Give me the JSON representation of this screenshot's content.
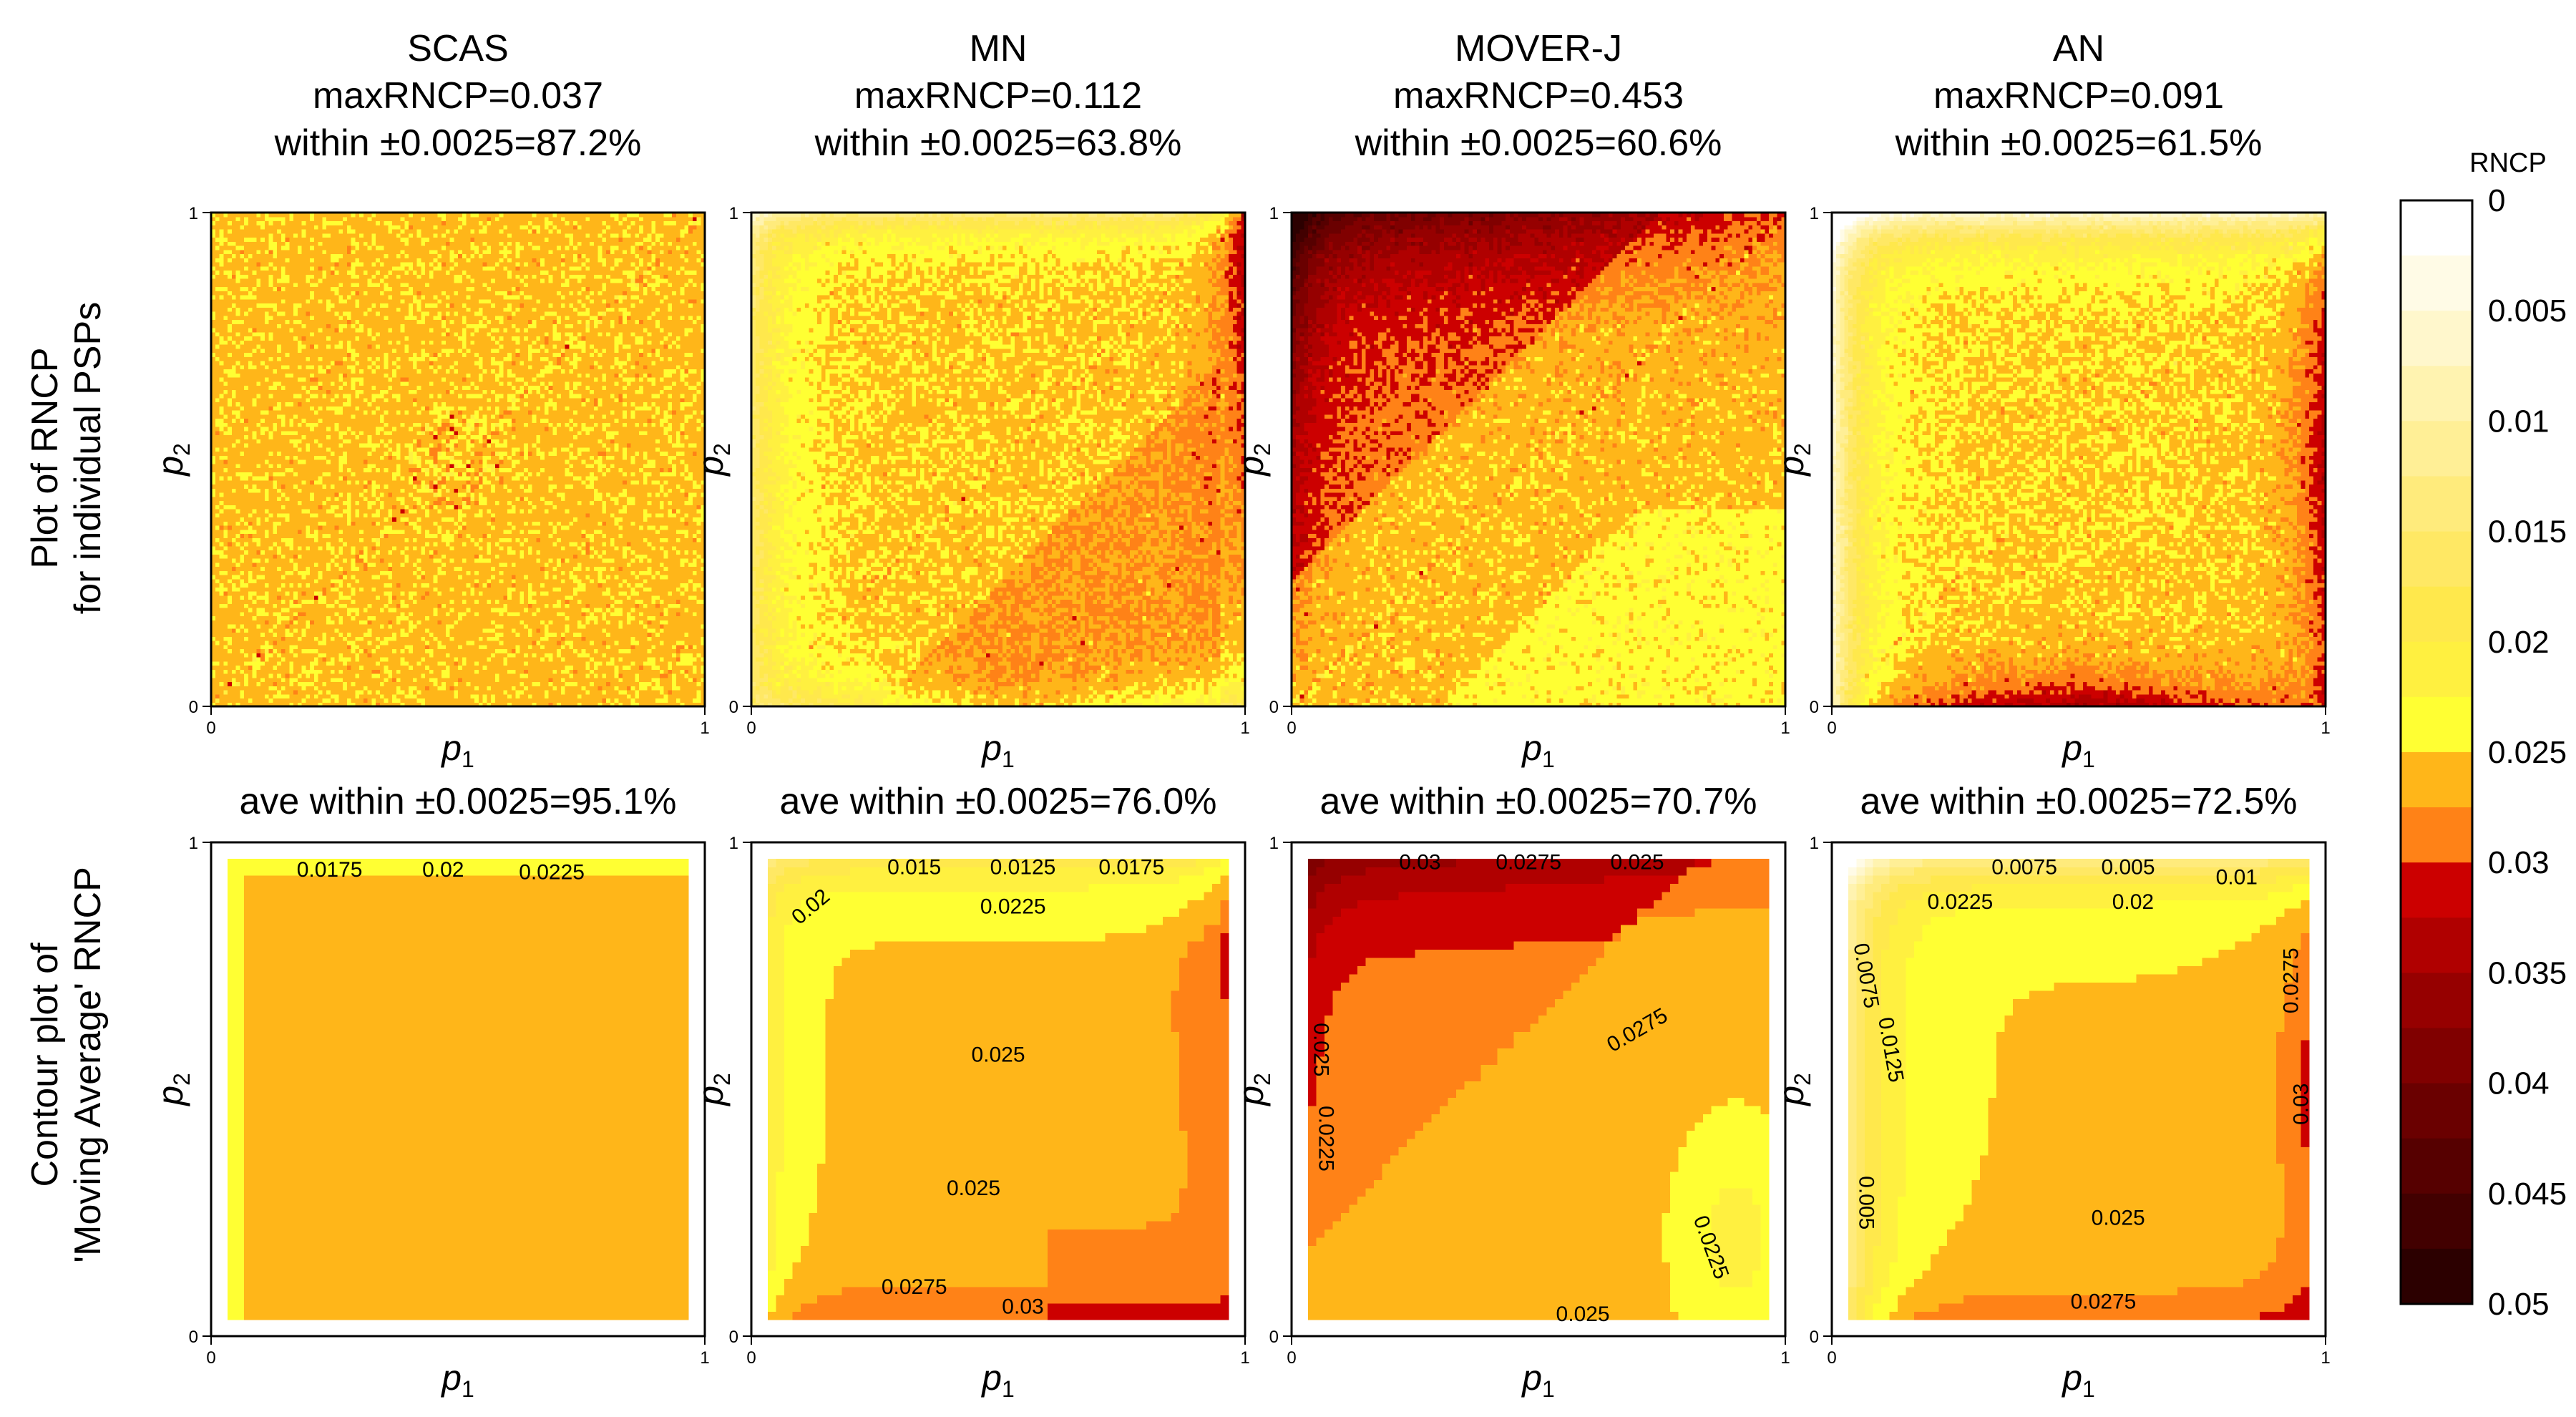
{
  "figure": {
    "row_labels": [
      [
        "Plot of RNCP",
        "for individual PSPs"
      ],
      [
        "Contour plot of",
        "'Moving Average' RNCP"
      ]
    ]
  },
  "chart_data": [
    {
      "type": "heatmap",
      "row": 0,
      "col": 0,
      "title": [
        "SCAS",
        "maxRNCP=0.037",
        "within ±0.0025=87.2%"
      ],
      "xlabel": "p",
      "xlabel_sub": "1",
      "ylabel": "p",
      "ylabel_sub": "2",
      "xlim": [
        0,
        1
      ],
      "ylim": [
        0,
        1
      ],
      "x_ticks": [
        "0",
        "1"
      ],
      "y_ticks": [
        "0",
        "1"
      ],
      "pattern": "uniform"
    },
    {
      "type": "heatmap",
      "row": 0,
      "col": 1,
      "title": [
        "MN",
        "maxRNCP=0.112",
        "within ±0.0025=63.8%"
      ],
      "xlabel": "p",
      "xlabel_sub": "1",
      "ylabel": "p",
      "ylabel_sub": "2",
      "xlim": [
        0,
        1
      ],
      "ylim": [
        0,
        1
      ],
      "x_ticks": [
        "0",
        "1"
      ],
      "y_ticks": [
        "0",
        "1"
      ],
      "pattern": "mn"
    },
    {
      "type": "heatmap",
      "row": 0,
      "col": 2,
      "title": [
        "MOVER-J",
        "maxRNCP=0.453",
        "within ±0.0025=60.6%"
      ],
      "xlabel": "p",
      "xlabel_sub": "1",
      "ylabel": "p",
      "ylabel_sub": "2",
      "xlim": [
        0,
        1
      ],
      "ylim": [
        0,
        1
      ],
      "x_ticks": [
        "0",
        "1"
      ],
      "y_ticks": [
        "0",
        "1"
      ],
      "pattern": "moverj"
    },
    {
      "type": "heatmap",
      "row": 0,
      "col": 3,
      "title": [
        "AN",
        "maxRNCP=0.091",
        "within ±0.0025=61.5%"
      ],
      "xlabel": "p",
      "xlabel_sub": "1",
      "ylabel": "p",
      "ylabel_sub": "2",
      "xlim": [
        0,
        1
      ],
      "ylim": [
        0,
        1
      ],
      "x_ticks": [
        "0",
        "1"
      ],
      "y_ticks": [
        "0",
        "1"
      ],
      "pattern": "an"
    },
    {
      "type": "heatmap",
      "row": 1,
      "col": 0,
      "title": [
        "ave within ±0.0025=95.1%"
      ],
      "xlabel": "p",
      "xlabel_sub": "1",
      "ylabel": "p",
      "ylabel_sub": "2",
      "xlim": [
        0,
        1
      ],
      "ylim": [
        0,
        1
      ],
      "x_ticks": [
        "0",
        "1"
      ],
      "y_ticks": [
        "0",
        "1"
      ],
      "pattern": "c_uniform",
      "contour_labels": [
        {
          "text": "0.0175",
          "x": 0.24,
          "y": 0.945,
          "angle": 0
        },
        {
          "text": "0.02",
          "x": 0.47,
          "y": 0.945,
          "angle": 0
        },
        {
          "text": "0.0225",
          "x": 0.69,
          "y": 0.94,
          "angle": 0
        }
      ]
    },
    {
      "type": "heatmap",
      "row": 1,
      "col": 1,
      "title": [
        "ave within ±0.0025=76.0%"
      ],
      "xlabel": "p",
      "xlabel_sub": "1",
      "ylabel": "p",
      "ylabel_sub": "2",
      "xlim": [
        0,
        1
      ],
      "ylim": [
        0,
        1
      ],
      "x_ticks": [
        "0",
        "1"
      ],
      "y_ticks": [
        "0",
        "1"
      ],
      "pattern": "c_mn",
      "contour_labels": [
        {
          "text": "0.015",
          "x": 0.33,
          "y": 0.95,
          "angle": 0
        },
        {
          "text": "0.0125",
          "x": 0.55,
          "y": 0.95,
          "angle": 0
        },
        {
          "text": "0.0175",
          "x": 0.77,
          "y": 0.95,
          "angle": 0
        },
        {
          "text": "0.02",
          "x": 0.12,
          "y": 0.87,
          "angle": -40
        },
        {
          "text": "0.0225",
          "x": 0.53,
          "y": 0.87,
          "angle": 0
        },
        {
          "text": "0.025",
          "x": 0.5,
          "y": 0.57,
          "angle": 0
        },
        {
          "text": "0.025",
          "x": 0.45,
          "y": 0.3,
          "angle": 0
        },
        {
          "text": "0.0275",
          "x": 0.33,
          "y": 0.1,
          "angle": 0
        },
        {
          "text": "0.03",
          "x": 0.55,
          "y": 0.06,
          "angle": 0
        }
      ]
    },
    {
      "type": "heatmap",
      "row": 1,
      "col": 2,
      "title": [
        "ave within ±0.0025=70.7%"
      ],
      "xlabel": "p",
      "xlabel_sub": "1",
      "ylabel": "p",
      "ylabel_sub": "2",
      "xlim": [
        0,
        1
      ],
      "ylim": [
        0,
        1
      ],
      "x_ticks": [
        "0",
        "1"
      ],
      "y_ticks": [
        "0",
        "1"
      ],
      "pattern": "c_moverj",
      "contour_labels": [
        {
          "text": "0.03",
          "x": 0.26,
          "y": 0.96,
          "angle": 0
        },
        {
          "text": "0.0275",
          "x": 0.48,
          "y": 0.96,
          "angle": 0
        },
        {
          "text": "0.025",
          "x": 0.7,
          "y": 0.96,
          "angle": 0
        },
        {
          "text": "0.0275",
          "x": 0.7,
          "y": 0.62,
          "angle": -30
        },
        {
          "text": "0.025",
          "x": 0.06,
          "y": 0.58,
          "angle": 90
        },
        {
          "text": "0.0225",
          "x": 0.07,
          "y": 0.4,
          "angle": 90
        },
        {
          "text": "0.0225",
          "x": 0.85,
          "y": 0.18,
          "angle": 70
        },
        {
          "text": "0.025",
          "x": 0.59,
          "y": 0.045,
          "angle": 0
        }
      ]
    },
    {
      "type": "heatmap",
      "row": 1,
      "col": 3,
      "title": [
        "ave within ±0.0025=72.5%"
      ],
      "xlabel": "p",
      "xlabel_sub": "1",
      "ylabel": "p",
      "ylabel_sub": "2",
      "xlim": [
        0,
        1
      ],
      "ylim": [
        0,
        1
      ],
      "x_ticks": [
        "0",
        "1"
      ],
      "y_ticks": [
        "0",
        "1"
      ],
      "pattern": "c_an",
      "contour_labels": [
        {
          "text": "0.0075",
          "x": 0.39,
          "y": 0.95,
          "angle": 0
        },
        {
          "text": "0.005",
          "x": 0.6,
          "y": 0.95,
          "angle": 0
        },
        {
          "text": "0.01",
          "x": 0.82,
          "y": 0.93,
          "angle": 0
        },
        {
          "text": "0.0225",
          "x": 0.26,
          "y": 0.88,
          "angle": 0
        },
        {
          "text": "0.02",
          "x": 0.61,
          "y": 0.88,
          "angle": 0
        },
        {
          "text": "0.0075",
          "x": 0.07,
          "y": 0.73,
          "angle": 80
        },
        {
          "text": "0.0125",
          "x": 0.12,
          "y": 0.58,
          "angle": 80
        },
        {
          "text": "0.0275",
          "x": 0.93,
          "y": 0.72,
          "angle": -90
        },
        {
          "text": "0.03",
          "x": 0.95,
          "y": 0.47,
          "angle": -90
        },
        {
          "text": "0.005",
          "x": 0.07,
          "y": 0.27,
          "angle": 90
        },
        {
          "text": "0.025",
          "x": 0.58,
          "y": 0.24,
          "angle": 0
        },
        {
          "text": "0.0275",
          "x": 0.55,
          "y": 0.07,
          "angle": 0
        }
      ]
    }
  ],
  "colorbar": {
    "title": "RNCP",
    "min": 0,
    "max": 0.05,
    "tick_labels": [
      "0",
      "0.005",
      "0.01",
      "0.015",
      "0.02",
      "0.025",
      "0.03",
      "0.035",
      "0.04",
      "0.045",
      "0.05"
    ],
    "colors": [
      "#ffffff",
      "#fffbe6",
      "#fff7cc",
      "#fff3b0",
      "#ffef96",
      "#ffeb7c",
      "#ffe864",
      "#ffe84c",
      "#fff040",
      "#ffff33",
      "#ffb619",
      "#ff8217",
      "#cc0000",
      "#b00000",
      "#960000",
      "#800000",
      "#6a0000",
      "#560000",
      "#420000",
      "#2c0000"
    ]
  }
}
